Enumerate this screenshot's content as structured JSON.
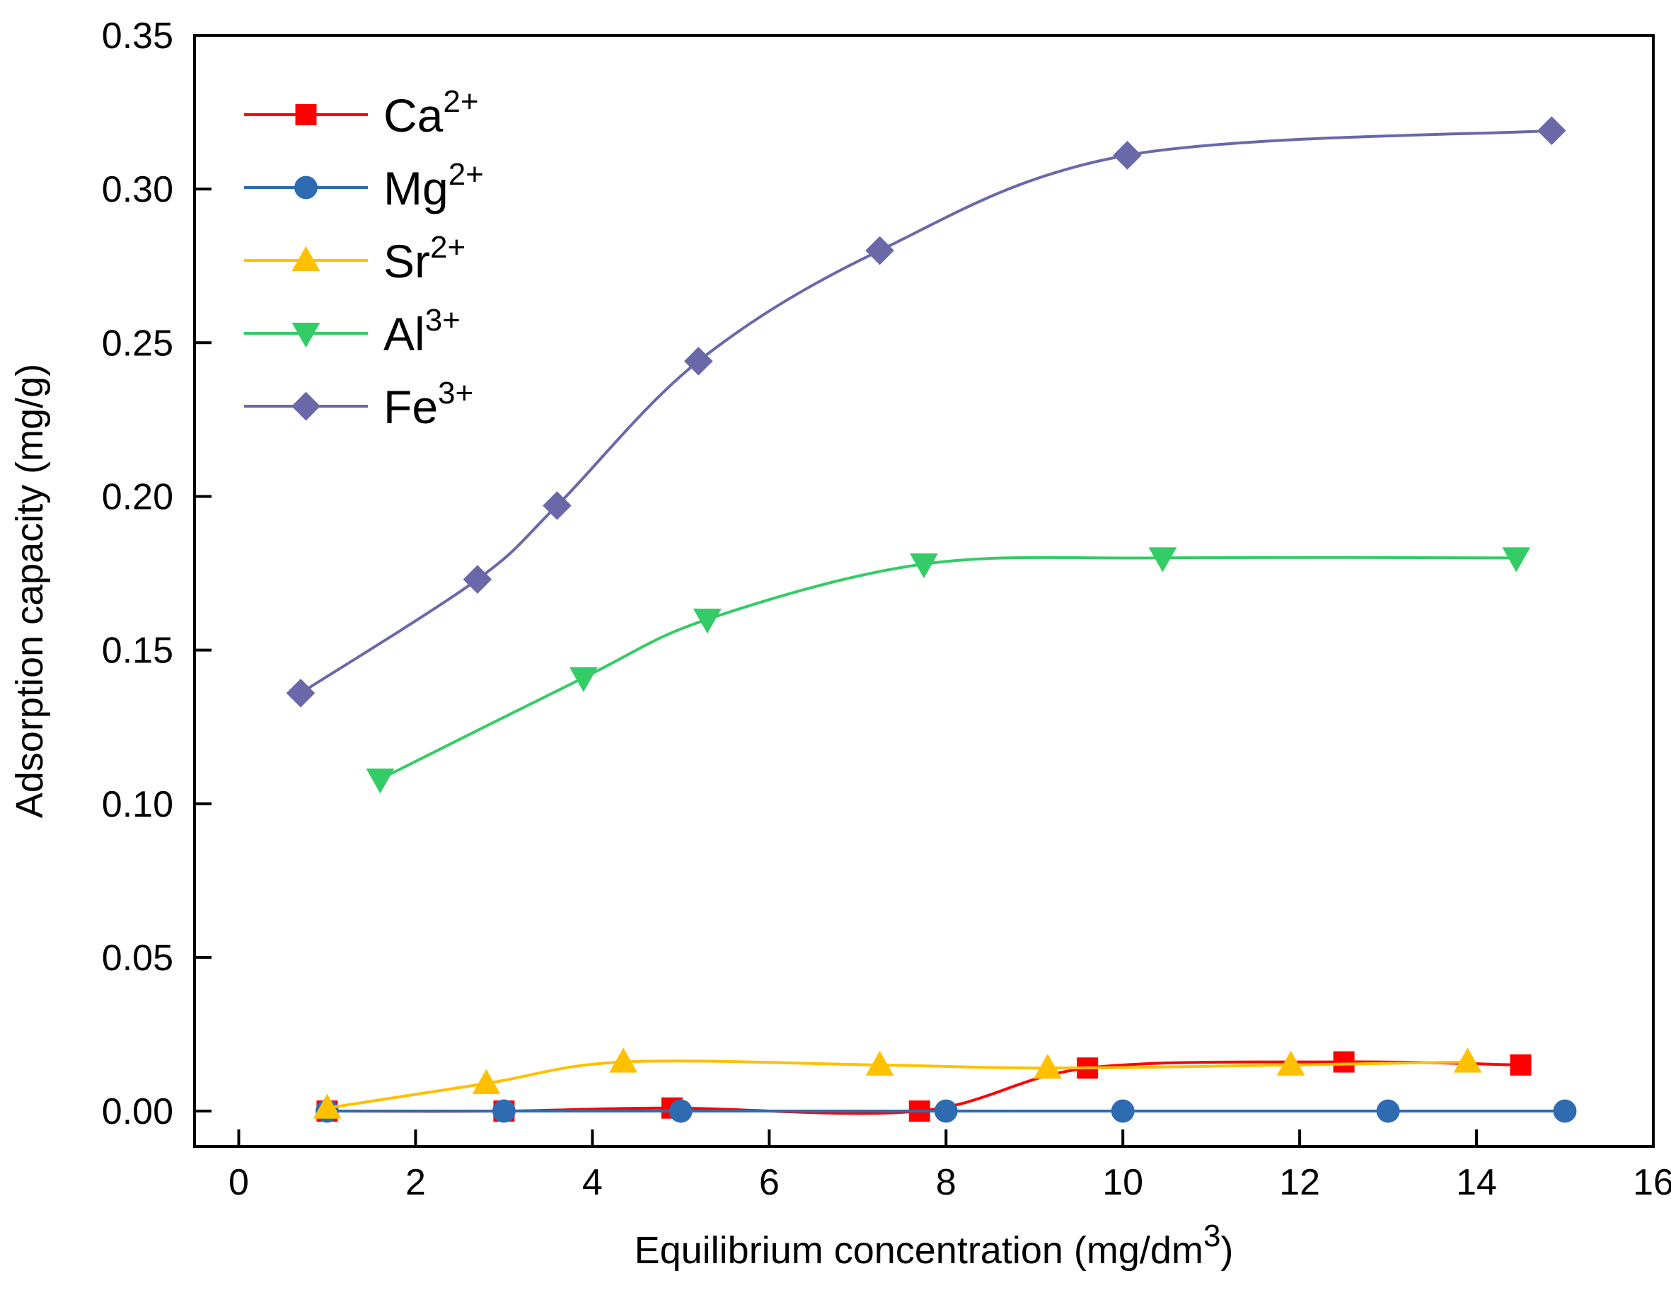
{
  "chart_data": {
    "type": "line",
    "title": "",
    "xlabel": "Equilibrium concentration (mg/dm",
    "xlabel_sup": "3",
    "xlabel_suffix": ")",
    "ylabel": "Adsorption capacity (mg/g)",
    "xlim": [
      -0.5,
      16
    ],
    "ylim": [
      -0.0115,
      0.35
    ],
    "xticks": [
      0,
      2,
      4,
      6,
      8,
      10,
      12,
      14,
      16
    ],
    "xtick_labels": [
      "0",
      "2",
      "4",
      "6",
      "8",
      "10",
      "12",
      "14",
      "16"
    ],
    "yticks": [
      0,
      0.05,
      0.1,
      0.15,
      0.2,
      0.25,
      0.3,
      0.35
    ],
    "ytick_labels": [
      "0.00",
      "0.05",
      "0.10",
      "0.15",
      "0.20",
      "0.25",
      "0.30",
      "0.35"
    ],
    "grid": false,
    "legend_position": "top-left",
    "series": [
      {
        "name": "Ca",
        "sup": "2+",
        "color": "#ff0000",
        "marker": "square",
        "x": [
          1.0,
          3.0,
          4.9,
          7.7,
          9.6,
          12.5,
          14.5
        ],
        "y": [
          0.0,
          0.0,
          0.001,
          0.0,
          0.014,
          0.016,
          0.015
        ]
      },
      {
        "name": "Mg",
        "sup": "2+",
        "color": "#2e6bb0",
        "marker": "circle",
        "x": [
          1.0,
          3.0,
          5.0,
          8.0,
          10.0,
          13.0,
          15.0
        ],
        "y": [
          0.0,
          0.0,
          0.0,
          0.0,
          0.0,
          0.0,
          0.0
        ]
      },
      {
        "name": "Sr",
        "sup": "2+",
        "color": "#ffc000",
        "marker": "triangle-up",
        "x": [
          1.0,
          2.8,
          4.35,
          7.25,
          9.15,
          11.9,
          13.9
        ],
        "y": [
          0.001,
          0.009,
          0.016,
          0.015,
          0.014,
          0.015,
          0.016
        ]
      },
      {
        "name": "Al",
        "sup": "3+",
        "color": "#33cc66",
        "marker": "triangle-down",
        "x": [
          1.6,
          3.9,
          5.3,
          7.75,
          10.45,
          14.45
        ],
        "y": [
          0.108,
          0.141,
          0.16,
          0.178,
          0.18,
          0.18
        ]
      },
      {
        "name": "Fe",
        "sup": "3+",
        "color": "#6a68a8",
        "marker": "diamond",
        "x": [
          0.7,
          2.7,
          3.6,
          5.2,
          7.25,
          10.05,
          14.85
        ],
        "y": [
          0.136,
          0.173,
          0.197,
          0.244,
          0.28,
          0.311,
          0.319
        ]
      }
    ]
  }
}
